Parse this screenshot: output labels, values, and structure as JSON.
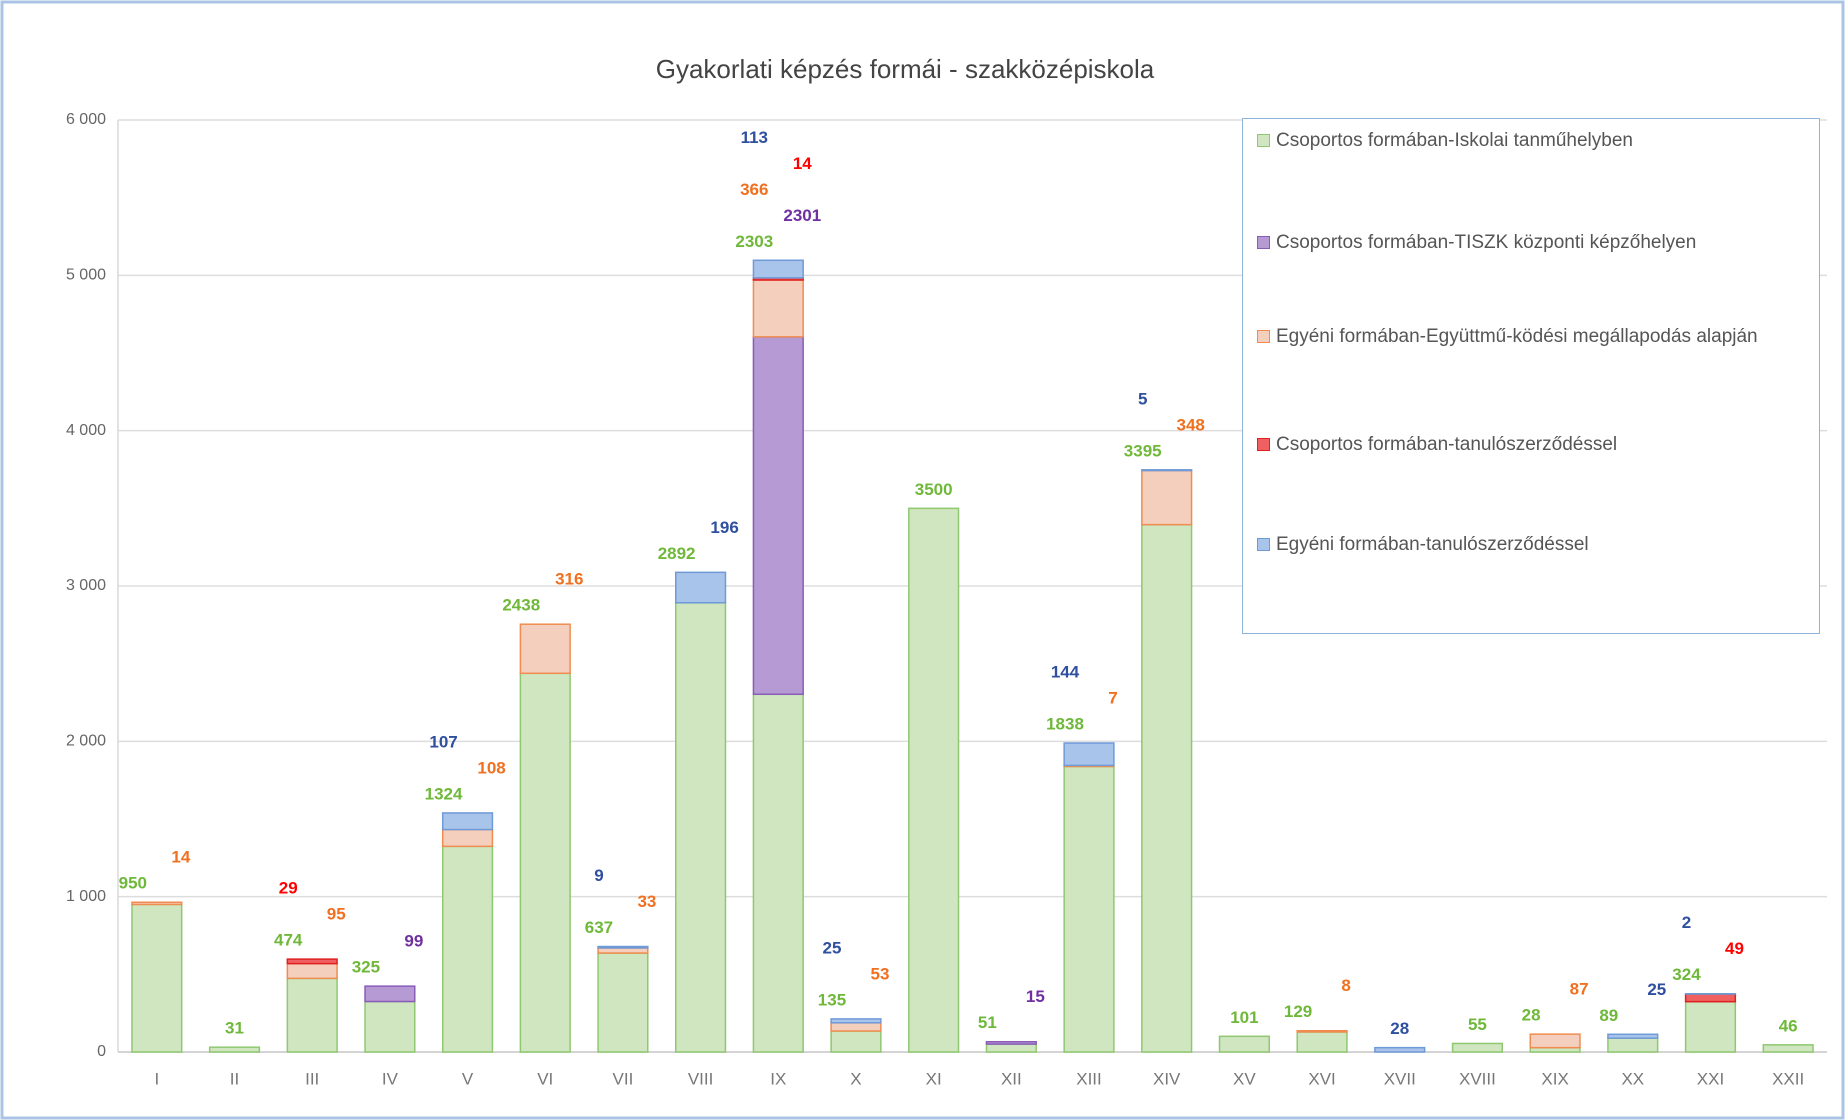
{
  "chart_data": {
    "type": "stacked_bar",
    "title": "Gyakorlati képzés formái - szakközépiskola",
    "categories": [
      "I",
      "II",
      "III",
      "IV",
      "V",
      "VI",
      "VII",
      "VIII",
      "IX",
      "X",
      "XI",
      "XII",
      "XIII",
      "XIV",
      "XV",
      "XVI",
      "XVII",
      "XVIII",
      "XIX",
      "XX",
      "XXI",
      "XXII"
    ],
    "series": [
      {
        "name": "Csoportos formában-Iskolai tanműhelyben",
        "color": "#cfe6c0",
        "stroke": "#8fc870",
        "label_color": "#6fb83a",
        "values": [
          950,
          31,
          474,
          325,
          1324,
          2438,
          637,
          2892,
          2303,
          135,
          3500,
          51,
          1838,
          3395,
          101,
          129,
          null,
          55,
          28,
          89,
          324,
          46
        ]
      },
      {
        "name": "Csoportos formában-TISZK központi képzőhelyen",
        "color": "#b69ad4",
        "stroke": "#8a5cb8",
        "label_color": "#7030a0",
        "values": [
          null,
          null,
          null,
          99,
          null,
          null,
          null,
          null,
          2301,
          null,
          null,
          15,
          null,
          null,
          null,
          null,
          null,
          null,
          null,
          null,
          null,
          null
        ]
      },
      {
        "name": "Egyéni formában-Együttmű-ködési megállapodás alapján",
        "color": "#f5cfbd",
        "stroke": "#f08c50",
        "label_color": "#f07020",
        "values": [
          14,
          null,
          95,
          null,
          108,
          316,
          33,
          null,
          366,
          53,
          null,
          null,
          7,
          348,
          null,
          8,
          null,
          null,
          87,
          null,
          null,
          null
        ]
      },
      {
        "name": "Csoportos formában-tanulószerződéssel",
        "color": "#f06060",
        "stroke": "#e02020",
        "label_color": "#ff0000",
        "values": [
          null,
          null,
          29,
          null,
          null,
          null,
          null,
          null,
          14,
          null,
          null,
          null,
          null,
          null,
          null,
          null,
          null,
          null,
          null,
          null,
          49,
          null
        ]
      },
      {
        "name": "Egyéni formában-tanulószerződéssel",
        "color": "#a9c4ea",
        "stroke": "#6f9ad8",
        "label_color": "#2f4f9f",
        "values": [
          null,
          null,
          null,
          null,
          107,
          null,
          9,
          196,
          113,
          25,
          null,
          null,
          144,
          5,
          null,
          null,
          28,
          null,
          null,
          25,
          2,
          null
        ]
      }
    ],
    "ylim": [
      0,
      6000
    ],
    "yticks": [
      0,
      {
        "value": 1000,
        "label": "1 000"
      },
      {
        "value": 2000,
        "label": "2 000"
      },
      {
        "value": 3000,
        "label": "3 000"
      },
      {
        "value": 4000,
        "label": "4 000"
      },
      {
        "value": 5000,
        "label": "5 000"
      },
      {
        "value": 6000,
        "label": "6 000"
      }
    ],
    "grid": true,
    "legend": "upper right"
  }
}
